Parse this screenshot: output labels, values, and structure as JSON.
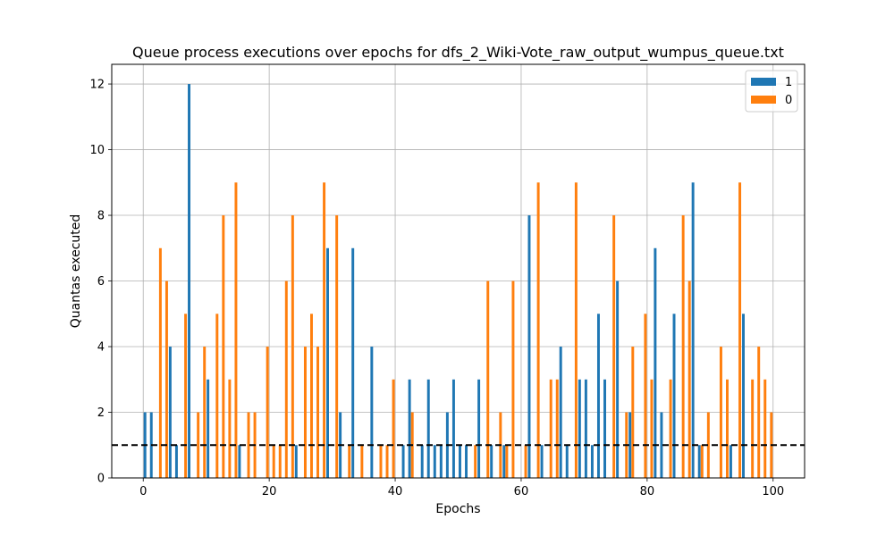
{
  "chart_data": {
    "type": "bar",
    "title": "Queue process executions over epochs for dfs_2_Wiki-Vote_raw_output_wumpus_queue.txt",
    "xlabel": "Epochs",
    "ylabel": "Quantas executed",
    "xlim": [
      -5,
      105
    ],
    "ylim": [
      0,
      12.6
    ],
    "xticks": [
      0,
      20,
      40,
      60,
      80,
      100
    ],
    "yticks": [
      0,
      2,
      4,
      6,
      8,
      10,
      12
    ],
    "grid": true,
    "legend_position": "top-right",
    "reference_line": {
      "y": 1,
      "style": "dashed",
      "color": "#000000"
    },
    "series": [
      {
        "name": "1",
        "color": "#1f77b4",
        "points": [
          [
            0,
            2
          ],
          [
            1,
            2
          ],
          [
            4,
            4
          ],
          [
            5,
            1
          ],
          [
            7,
            12
          ],
          [
            10,
            3
          ],
          [
            15,
            1
          ],
          [
            24,
            1
          ],
          [
            29,
            7
          ],
          [
            31,
            2
          ],
          [
            33,
            7
          ],
          [
            36,
            4
          ],
          [
            41,
            1
          ],
          [
            42,
            3
          ],
          [
            44,
            1
          ],
          [
            45,
            3
          ],
          [
            46,
            1
          ],
          [
            47,
            1
          ],
          [
            48,
            2
          ],
          [
            49,
            3
          ],
          [
            50,
            1
          ],
          [
            51,
            1
          ],
          [
            53,
            3
          ],
          [
            55,
            1
          ],
          [
            57,
            1
          ],
          [
            61,
            8
          ],
          [
            63,
            1
          ],
          [
            66,
            4
          ],
          [
            67,
            1
          ],
          [
            69,
            3
          ],
          [
            70,
            3
          ],
          [
            71,
            1
          ],
          [
            72,
            5
          ],
          [
            73,
            3
          ],
          [
            75,
            6
          ],
          [
            77,
            2
          ],
          [
            81,
            7
          ],
          [
            82,
            2
          ],
          [
            84,
            5
          ],
          [
            87,
            9
          ],
          [
            88,
            1
          ],
          [
            93,
            1
          ],
          [
            95,
            5
          ]
        ]
      },
      {
        "name": "0",
        "color": "#ff7f0e",
        "points": [
          [
            3,
            7
          ],
          [
            4,
            6
          ],
          [
            7,
            5
          ],
          [
            9,
            2
          ],
          [
            10,
            4
          ],
          [
            12,
            5
          ],
          [
            13,
            8
          ],
          [
            14,
            3
          ],
          [
            15,
            9
          ],
          [
            17,
            2
          ],
          [
            18,
            2
          ],
          [
            20,
            4
          ],
          [
            21,
            1
          ],
          [
            22,
            1
          ],
          [
            23,
            6
          ],
          [
            24,
            8
          ],
          [
            26,
            4
          ],
          [
            27,
            5
          ],
          [
            28,
            4
          ],
          [
            29,
            9
          ],
          [
            31,
            8
          ],
          [
            33,
            1
          ],
          [
            35,
            1
          ],
          [
            38,
            1
          ],
          [
            39,
            1
          ],
          [
            40,
            3
          ],
          [
            43,
            2
          ],
          [
            53,
            1
          ],
          [
            55,
            6
          ],
          [
            57,
            2
          ],
          [
            58,
            1
          ],
          [
            59,
            6
          ],
          [
            61,
            1
          ],
          [
            63,
            9
          ],
          [
            65,
            3
          ],
          [
            66,
            3
          ],
          [
            69,
            9
          ],
          [
            75,
            8
          ],
          [
            77,
            2
          ],
          [
            78,
            4
          ],
          [
            80,
            5
          ],
          [
            81,
            3
          ],
          [
            84,
            3
          ],
          [
            86,
            8
          ],
          [
            87,
            6
          ],
          [
            89,
            1
          ],
          [
            90,
            2
          ],
          [
            92,
            4
          ],
          [
            93,
            3
          ],
          [
            95,
            9
          ],
          [
            97,
            3
          ],
          [
            98,
            4
          ],
          [
            99,
            3
          ],
          [
            100,
            2
          ]
        ]
      }
    ]
  }
}
